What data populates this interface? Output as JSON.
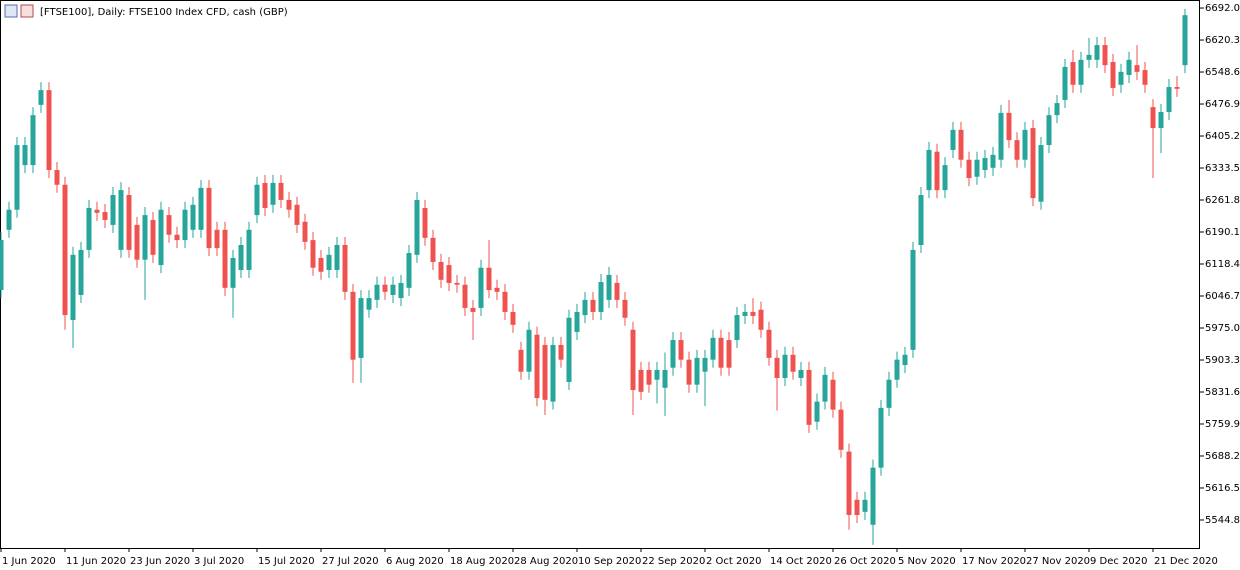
{
  "chart_data": {
    "type": "candlestick",
    "title": "[FTSE100], Daily:  FTSE100 Index CFD, cash (GBP)",
    "up_color": "#26a69a",
    "down_color": "#ef5350",
    "ylim": [
      5482,
      6710
    ],
    "yticks": [
      {
        "value": 6692.0,
        "label": "6692.0"
      },
      {
        "value": 6620.3,
        "label": "6620.30"
      },
      {
        "value": 6548.6,
        "label": "6548.60"
      },
      {
        "value": 6476.9,
        "label": "6476.90"
      },
      {
        "value": 6405.2,
        "label": "6405.20"
      },
      {
        "value": 6333.5,
        "label": "6333.50"
      },
      {
        "value": 6261.8,
        "label": "6261.80"
      },
      {
        "value": 6190.1,
        "label": "6190.10"
      },
      {
        "value": 6118.4,
        "label": "6118.40"
      },
      {
        "value": 6046.7,
        "label": "6046.70"
      },
      {
        "value": 5975.0,
        "label": "5975.00"
      },
      {
        "value": 5903.3,
        "label": "5903.30"
      },
      {
        "value": 5831.6,
        "label": "5831.60"
      },
      {
        "value": 5759.9,
        "label": "5759.90"
      },
      {
        "value": 5688.2,
        "label": "5688.20"
      },
      {
        "value": 5616.5,
        "label": "5616.50"
      },
      {
        "value": 5544.8,
        "label": "5544.80"
      }
    ],
    "categories": [
      "1 Jun 2020",
      null,
      null,
      null,
      null,
      null,
      null,
      null,
      "11 Jun 2020",
      null,
      null,
      null,
      null,
      null,
      null,
      null,
      "23 Jun 2020",
      null,
      null,
      null,
      null,
      null,
      null,
      null,
      "3 Jul 2020",
      null,
      null,
      null,
      null,
      null,
      null,
      null,
      "15 Jul 2020",
      null,
      null,
      null,
      null,
      null,
      null,
      null,
      "27 Jul 2020",
      null,
      null,
      null,
      null,
      null,
      null,
      null,
      "6 Aug 2020",
      null,
      null,
      null,
      null,
      null,
      null,
      null,
      "18 Aug 2020",
      null,
      null,
      null,
      null,
      null,
      null,
      null,
      "28 Aug 2020",
      null,
      null,
      null,
      null,
      null,
      null,
      null,
      "10 Sep 2020",
      null,
      null,
      null,
      null,
      null,
      null,
      null,
      "22 Sep 2020",
      null,
      null,
      null,
      null,
      null,
      null,
      null,
      "2 Oct 2020",
      null,
      null,
      null,
      null,
      null,
      null,
      null,
      "14 Oct 2020",
      null,
      null,
      null,
      null,
      null,
      null,
      null,
      "26 Oct 2020",
      null,
      null,
      null,
      null,
      null,
      null,
      null,
      "5 Nov 2020",
      null,
      null,
      null,
      null,
      null,
      null,
      null,
      "17 Nov 2020",
      null,
      null,
      null,
      null,
      null,
      null,
      null,
      "27 Nov 2020",
      null,
      null,
      null,
      null,
      null,
      null,
      null,
      "9 Dec 2020",
      null,
      null,
      null,
      null,
      null,
      null,
      null,
      "21 Dec 2020",
      null,
      null,
      null,
      null
    ],
    "open": [
      6060,
      6195,
      6240,
      6340,
      6340,
      6475,
      6508,
      6329,
      6296,
      5993,
      6049,
      6150,
      6240,
      6235,
      6206,
      6150,
      6273,
      6206,
      6128,
      6217,
      6116,
      6228,
      6184,
      6172,
      6195,
      6195,
      6289,
      6195,
      6195,
      6065,
      6105,
      6105,
      6228,
      6300,
      6251,
      6300,
      6262,
      6251,
      6213,
      6172,
      6132,
      6105,
      6105,
      6161,
      6056,
      5908,
      6016,
      6038,
      6072,
      6049,
      6042,
      6065,
      6139,
      6244,
      6177,
      6123,
      6116,
      6076,
      6072,
      6020,
      6020,
      6110,
      6065,
      6056,
      6011,
      5926,
      5877,
      5960,
      5937,
      5810,
      5937,
      5854,
      5966,
      6004,
      6038,
      6011,
      6038,
      6076,
      6038,
      5971,
      5881,
      5881,
      5859,
      5841,
      5886,
      5948,
      5904,
      5848,
      5877,
      5904,
      5953,
      5948,
      5948,
      6002,
      6011,
      6016,
      5971,
      5908,
      5863,
      5915,
      5863,
      5881,
      5765,
      5810,
      5859,
      5792,
      5698,
      5590,
      5563,
      5534,
      5662,
      5796,
      5859,
      5892,
      5926,
      6161,
      6284,
      6370,
      6284,
      6374,
      6419,
      6352,
      6314,
      6329,
      6334,
      6352,
      6457,
      6396,
      6352,
      6423,
      6258,
      6385,
      6452,
      6486,
      6571,
      6520,
      6576,
      6576,
      6609,
      6571,
      6520,
      6542,
      6564,
      6553,
      6470,
      6423,
      6459,
      6515,
      6564
    ],
    "high": [
      6190,
      6258,
      6403,
      6403,
      6470,
      6526,
      6526,
      6347,
      6314,
      6157,
      6168,
      6262,
      6258,
      6253,
      6291,
      6302,
      6291,
      6224,
      6246,
      6235,
      6258,
      6246,
      6202,
      6258,
      6269,
      6307,
      6307,
      6213,
      6213,
      6150,
      6179,
      6213,
      6314,
      6318,
      6318,
      6318,
      6280,
      6269,
      6231,
      6190,
      6150,
      6157,
      6179,
      6179,
      6074,
      6060,
      6060,
      6090,
      6090,
      6090,
      6094,
      6161,
      6280,
      6262,
      6195,
      6141,
      6134,
      6094,
      6090,
      6038,
      6128,
      6172,
      6083,
      6074,
      6029,
      5944,
      5989,
      5978,
      5955,
      5955,
      5955,
      6016,
      6029,
      6056,
      6056,
      6096,
      6112,
      6094,
      6056,
      5989,
      5899,
      5899,
      5899,
      5920,
      5966,
      5966,
      5922,
      5926,
      5926,
      5971,
      5971,
      5966,
      6022,
      6029,
      6042,
      6034,
      5989,
      5926,
      5933,
      5933,
      5899,
      5899,
      5828,
      5888,
      5877,
      5810,
      5716,
      5608,
      5608,
      5680,
      5814,
      5877,
      5922,
      5933,
      6168,
      6291,
      6392,
      6388,
      6358,
      6437,
      6437,
      6370,
      6370,
      6374,
      6381,
      6475,
      6486,
      6414,
      6437,
      6441,
      6403,
      6470,
      6497,
      6578,
      6598,
      6594,
      6625,
      6627,
      6627,
      6589,
      6567,
      6594,
      6609,
      6571,
      6488,
      6477,
      6533,
      6540,
      6690
    ],
    "low": [
      6042,
      6177,
      6222,
      6322,
      6322,
      6457,
      6311,
      6278,
      5971,
      5930,
      6031,
      6132,
      6215,
      6199,
      6188,
      6132,
      6132,
      6110,
      6038,
      6121,
      6098,
      6166,
      6154,
      6154,
      6177,
      6177,
      6136,
      6136,
      6047,
      5998,
      6087,
      6087,
      6210,
      6226,
      6233,
      6244,
      6222,
      6188,
      6150,
      6092,
      6083,
      6087,
      6087,
      6038,
      5852,
      5852,
      5998,
      6020,
      6038,
      6031,
      6024,
      6047,
      6121,
      6159,
      6105,
      6065,
      6058,
      6054,
      6002,
      5948,
      6002,
      6042,
      6038,
      5993,
      5964,
      5859,
      5859,
      5800,
      5780,
      5792,
      5886,
      5836,
      5948,
      5986,
      5993,
      5993,
      6020,
      6020,
      5980,
      5780,
      5814,
      5830,
      5806,
      5778,
      5868,
      5886,
      5830,
      5830,
      5800,
      5886,
      5868,
      5868,
      5930,
      5984,
      5984,
      5953,
      5890,
      5790,
      5845,
      5859,
      5845,
      5740,
      5747,
      5792,
      5774,
      5684,
      5523,
      5538,
      5545,
      5489,
      5644,
      5778,
      5841,
      5874,
      5908,
      6143,
      6266,
      6266,
      6266,
      6356,
      6334,
      6293,
      6296,
      6311,
      6316,
      6334,
      6378,
      6334,
      6334,
      6248,
      6240,
      6367,
      6434,
      6468,
      6502,
      6502,
      6558,
      6558,
      6546,
      6495,
      6502,
      6524,
      6531,
      6502,
      6311,
      6367,
      6441,
      6493,
      6546
    ],
    "close": [
      6172,
      6240,
      6385,
      6385,
      6452,
      6508,
      6329,
      6296,
      6004,
      6139,
      6150,
      6244,
      6233,
      6217,
      6273,
      6284,
      6150,
      6128,
      6228,
      6139,
      6240,
      6184,
      6172,
      6240,
      6251,
      6289,
      6154,
      6154,
      6065,
      6132,
      6161,
      6195,
      6296,
      6244,
      6300,
      6262,
      6240,
      6206,
      6168,
      6110,
      6101,
      6139,
      6161,
      6056,
      5904,
      6042,
      6042,
      6072,
      6056,
      6072,
      6076,
      6143,
      6262,
      6177,
      6123,
      6083,
      6076,
      6072,
      6020,
      6011,
      6110,
      6060,
      6056,
      6011,
      5982,
      5877,
      5971,
      5818,
      5814,
      5937,
      5904,
      5998,
      6011,
      6038,
      6011,
      6078,
      6094,
      6038,
      5998,
      5836,
      5832,
      5848,
      5881,
      5881,
      5948,
      5904,
      5848,
      5908,
      5908,
      5953,
      5886,
      5886,
      6004,
      6011,
      6002,
      5971,
      5908,
      5863,
      5915,
      5877,
      5881,
      5758,
      5810,
      5870,
      5792,
      5702,
      5556,
      5556,
      5590,
      5662,
      5796,
      5859,
      5904,
      5915,
      6150,
      6273,
      6374,
      6284,
      6340,
      6419,
      6352,
      6311,
      6352,
      6356,
      6363,
      6457,
      6396,
      6352,
      6419,
      6266,
      6385,
      6452,
      6479,
      6560,
      6520,
      6576,
      6587,
      6609,
      6564,
      6513,
      6549,
      6576,
      6549,
      6520,
      6423,
      6459,
      6515,
      6511,
      6676
    ]
  }
}
